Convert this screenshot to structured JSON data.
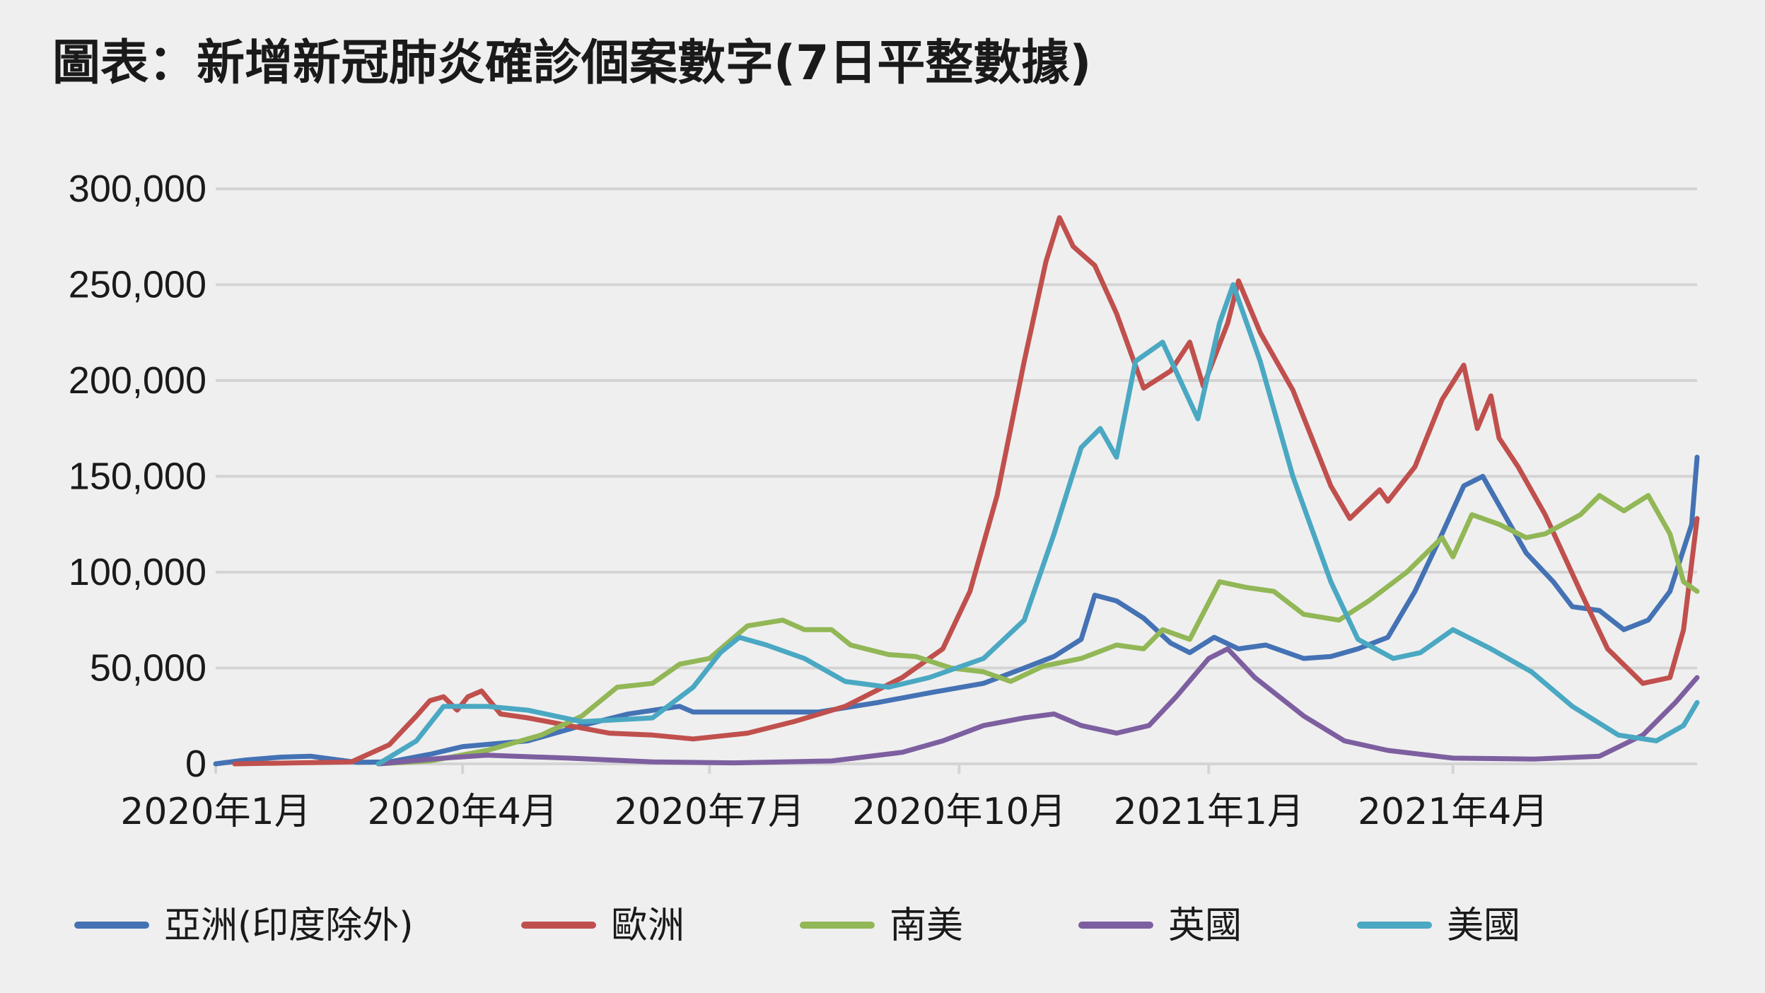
{
  "title": "圖表：新增新冠肺炎確診個案數字(7日平整數據)",
  "colors": {
    "background": "#efefef",
    "grid": "#d4d4d4",
    "text": "#1a1a1a",
    "asia": "#4472b4",
    "europe": "#c0504d",
    "south_america": "#92b756",
    "uk": "#7d5fa0",
    "usa": "#4aa8c2"
  },
  "chart_data": {
    "type": "line",
    "title": "圖表：新增新冠肺炎確診個案數字(7日平整數據)",
    "xlabel": "",
    "ylabel": "",
    "ylim": [
      0,
      300000
    ],
    "xlim": [
      "2020-01-01",
      "2021-06-30"
    ],
    "grid": true,
    "legend_position": "bottom",
    "y_ticks": [
      {
        "value": 0,
        "label": "0"
      },
      {
        "value": 50000,
        "label": "50,000"
      },
      {
        "value": 100000,
        "label": "100,000"
      },
      {
        "value": 150000,
        "label": "150,000"
      },
      {
        "value": 200000,
        "label": "200,000"
      },
      {
        "value": 250000,
        "label": "250,000"
      },
      {
        "value": 300000,
        "label": "300,000"
      }
    ],
    "x_ticks": [
      {
        "date": "2020-01-01",
        "label": "2020年1月"
      },
      {
        "date": "2020-04-01",
        "label": "2020年4月"
      },
      {
        "date": "2020-07-01",
        "label": "2020年7月"
      },
      {
        "date": "2020-10-01",
        "label": "2020年10月"
      },
      {
        "date": "2021-01-01",
        "label": "2021年1月"
      },
      {
        "date": "2021-04-01",
        "label": "2021年4月"
      }
    ],
    "series": [
      {
        "name": "亞洲(印度除外)",
        "color_key": "asia",
        "points": [
          [
            "2020-01-01",
            0
          ],
          [
            "2020-01-12",
            2000
          ],
          [
            "2020-01-25",
            3500
          ],
          [
            "2020-02-05",
            4000
          ],
          [
            "2020-02-10",
            3000
          ],
          [
            "2020-02-22",
            800
          ],
          [
            "2020-03-05",
            1000
          ],
          [
            "2020-03-20",
            5000
          ],
          [
            "2020-04-01",
            9000
          ],
          [
            "2020-04-25",
            12000
          ],
          [
            "2020-05-15",
            20000
          ],
          [
            "2020-06-01",
            26000
          ],
          [
            "2020-06-20",
            30000
          ],
          [
            "2020-06-25",
            27000
          ],
          [
            "2020-07-15",
            27000
          ],
          [
            "2020-08-10",
            27000
          ],
          [
            "2020-09-01",
            32000
          ],
          [
            "2020-09-20",
            37000
          ],
          [
            "2020-10-10",
            42000
          ],
          [
            "2020-10-25",
            50000
          ],
          [
            "2020-11-05",
            56000
          ],
          [
            "2020-11-15",
            65000
          ],
          [
            "2020-11-20",
            88000
          ],
          [
            "2020-11-28",
            85000
          ],
          [
            "2020-12-08",
            76000
          ],
          [
            "2020-12-18",
            63000
          ],
          [
            "2020-12-25",
            58000
          ],
          [
            "2021-01-03",
            66000
          ],
          [
            "2021-01-12",
            60000
          ],
          [
            "2021-01-22",
            62000
          ],
          [
            "2021-02-05",
            55000
          ],
          [
            "2021-02-15",
            56000
          ],
          [
            "2021-02-25",
            60000
          ],
          [
            "2021-03-08",
            66000
          ],
          [
            "2021-03-18",
            90000
          ],
          [
            "2021-03-28",
            120000
          ],
          [
            "2021-04-05",
            145000
          ],
          [
            "2021-04-12",
            150000
          ],
          [
            "2021-04-20",
            130000
          ],
          [
            "2021-04-28",
            110000
          ],
          [
            "2021-05-08",
            95000
          ],
          [
            "2021-05-15",
            82000
          ],
          [
            "2021-05-25",
            80000
          ],
          [
            "2021-06-03",
            70000
          ],
          [
            "2021-06-12",
            75000
          ],
          [
            "2021-06-20",
            90000
          ],
          [
            "2021-06-28",
            125000
          ],
          [
            "2021-06-30",
            160000
          ]
        ]
      },
      {
        "name": "歐洲",
        "color_key": "europe",
        "points": [
          [
            "2020-01-08",
            0
          ],
          [
            "2020-02-20",
            1000
          ],
          [
            "2020-03-05",
            10000
          ],
          [
            "2020-03-15",
            25000
          ],
          [
            "2020-03-20",
            33000
          ],
          [
            "2020-03-25",
            35000
          ],
          [
            "2020-03-30",
            28000
          ],
          [
            "2020-04-03",
            35000
          ],
          [
            "2020-04-08",
            38000
          ],
          [
            "2020-04-15",
            26000
          ],
          [
            "2020-04-25",
            24000
          ],
          [
            "2020-05-10",
            20000
          ],
          [
            "2020-05-25",
            16000
          ],
          [
            "2020-06-10",
            15000
          ],
          [
            "2020-06-25",
            13000
          ],
          [
            "2020-07-15",
            16000
          ],
          [
            "2020-08-01",
            22000
          ],
          [
            "2020-08-20",
            30000
          ],
          [
            "2020-09-10",
            45000
          ],
          [
            "2020-09-25",
            60000
          ],
          [
            "2020-10-05",
            90000
          ],
          [
            "2020-10-15",
            140000
          ],
          [
            "2020-10-25",
            210000
          ],
          [
            "2020-11-02",
            262000
          ],
          [
            "2020-11-07",
            285000
          ],
          [
            "2020-11-12",
            270000
          ],
          [
            "2020-11-20",
            260000
          ],
          [
            "2020-11-28",
            235000
          ],
          [
            "2020-12-08",
            196000
          ],
          [
            "2020-12-18",
            205000
          ],
          [
            "2020-12-25",
            220000
          ],
          [
            "2020-12-30",
            197000
          ],
          [
            "2021-01-08",
            230000
          ],
          [
            "2021-01-12",
            252000
          ],
          [
            "2021-01-20",
            225000
          ],
          [
            "2021-02-01",
            195000
          ],
          [
            "2021-02-15",
            145000
          ],
          [
            "2021-02-22",
            128000
          ],
          [
            "2021-03-05",
            143000
          ],
          [
            "2021-03-08",
            137000
          ],
          [
            "2021-03-18",
            155000
          ],
          [
            "2021-03-28",
            190000
          ],
          [
            "2021-04-05",
            208000
          ],
          [
            "2021-04-10",
            175000
          ],
          [
            "2021-04-15",
            192000
          ],
          [
            "2021-04-18",
            170000
          ],
          [
            "2021-04-25",
            155000
          ],
          [
            "2021-05-05",
            130000
          ],
          [
            "2021-05-18",
            90000
          ],
          [
            "2021-05-28",
            60000
          ],
          [
            "2021-06-10",
            42000
          ],
          [
            "2021-06-20",
            45000
          ],
          [
            "2021-06-25",
            70000
          ],
          [
            "2021-06-30",
            128000
          ]
        ]
      },
      {
        "name": "南美",
        "color_key": "south_america",
        "points": [
          [
            "2020-03-01",
            0
          ],
          [
            "2020-03-20",
            1500
          ],
          [
            "2020-04-10",
            7000
          ],
          [
            "2020-04-30",
            15000
          ],
          [
            "2020-05-15",
            25000
          ],
          [
            "2020-05-28",
            40000
          ],
          [
            "2020-06-10",
            42000
          ],
          [
            "2020-06-20",
            52000
          ],
          [
            "2020-07-01",
            55000
          ],
          [
            "2020-07-15",
            72000
          ],
          [
            "2020-07-28",
            75000
          ],
          [
            "2020-08-05",
            70000
          ],
          [
            "2020-08-15",
            70000
          ],
          [
            "2020-08-22",
            62000
          ],
          [
            "2020-09-05",
            57000
          ],
          [
            "2020-09-15",
            56000
          ],
          [
            "2020-09-28",
            50000
          ],
          [
            "2020-10-10",
            48000
          ],
          [
            "2020-10-20",
            43000
          ],
          [
            "2020-11-01",
            51000
          ],
          [
            "2020-11-15",
            55000
          ],
          [
            "2020-11-28",
            62000
          ],
          [
            "2020-12-08",
            60000
          ],
          [
            "2020-12-15",
            70000
          ],
          [
            "2020-12-25",
            65000
          ],
          [
            "2021-01-05",
            95000
          ],
          [
            "2021-01-15",
            92000
          ],
          [
            "2021-01-25",
            90000
          ],
          [
            "2021-02-05",
            78000
          ],
          [
            "2021-02-18",
            75000
          ],
          [
            "2021-03-01",
            85000
          ],
          [
            "2021-03-15",
            100000
          ],
          [
            "2021-03-28",
            118000
          ],
          [
            "2021-04-01",
            108000
          ],
          [
            "2021-04-08",
            130000
          ],
          [
            "2021-04-18",
            125000
          ],
          [
            "2021-04-28",
            118000
          ],
          [
            "2021-05-05",
            120000
          ],
          [
            "2021-05-18",
            130000
          ],
          [
            "2021-05-25",
            140000
          ],
          [
            "2021-06-03",
            132000
          ],
          [
            "2021-06-12",
            140000
          ],
          [
            "2021-06-20",
            120000
          ],
          [
            "2021-06-25",
            95000
          ],
          [
            "2021-06-30",
            90000
          ]
        ]
      },
      {
        "name": "英國",
        "color_key": "uk",
        "points": [
          [
            "2020-03-01",
            0
          ],
          [
            "2020-03-25",
            3000
          ],
          [
            "2020-04-10",
            4500
          ],
          [
            "2020-05-10",
            3000
          ],
          [
            "2020-06-10",
            1000
          ],
          [
            "2020-07-10",
            500
          ],
          [
            "2020-08-15",
            1500
          ],
          [
            "2020-09-10",
            6000
          ],
          [
            "2020-09-25",
            12000
          ],
          [
            "2020-10-10",
            20000
          ],
          [
            "2020-10-25",
            24000
          ],
          [
            "2020-11-05",
            26000
          ],
          [
            "2020-11-15",
            20000
          ],
          [
            "2020-11-28",
            16000
          ],
          [
            "2020-12-10",
            20000
          ],
          [
            "2020-12-20",
            35000
          ],
          [
            "2021-01-01",
            55000
          ],
          [
            "2021-01-08",
            60000
          ],
          [
            "2021-01-18",
            45000
          ],
          [
            "2021-02-05",
            25000
          ],
          [
            "2021-02-20",
            12000
          ],
          [
            "2021-03-08",
            7000
          ],
          [
            "2021-04-01",
            3000
          ],
          [
            "2021-05-01",
            2500
          ],
          [
            "2021-05-25",
            4000
          ],
          [
            "2021-06-10",
            15000
          ],
          [
            "2021-06-22",
            32000
          ],
          [
            "2021-06-30",
            45000
          ]
        ]
      },
      {
        "name": "美國",
        "color_key": "usa",
        "points": [
          [
            "2020-03-01",
            0
          ],
          [
            "2020-03-15",
            12000
          ],
          [
            "2020-03-25",
            30000
          ],
          [
            "2020-04-10",
            30000
          ],
          [
            "2020-04-25",
            28000
          ],
          [
            "2020-05-15",
            22000
          ],
          [
            "2020-06-10",
            24000
          ],
          [
            "2020-06-25",
            40000
          ],
          [
            "2020-07-05",
            58000
          ],
          [
            "2020-07-12",
            66000
          ],
          [
            "2020-07-22",
            62000
          ],
          [
            "2020-08-05",
            55000
          ],
          [
            "2020-08-20",
            43000
          ],
          [
            "2020-09-05",
            40000
          ],
          [
            "2020-09-20",
            45000
          ],
          [
            "2020-10-10",
            55000
          ],
          [
            "2020-10-25",
            75000
          ],
          [
            "2020-11-05",
            120000
          ],
          [
            "2020-11-15",
            165000
          ],
          [
            "2020-11-22",
            175000
          ],
          [
            "2020-11-28",
            160000
          ],
          [
            "2020-12-05",
            210000
          ],
          [
            "2020-12-15",
            220000
          ],
          [
            "2020-12-28",
            180000
          ],
          [
            "2021-01-05",
            230000
          ],
          [
            "2021-01-10",
            250000
          ],
          [
            "2021-01-20",
            210000
          ],
          [
            "2021-02-01",
            150000
          ],
          [
            "2021-02-15",
            95000
          ],
          [
            "2021-02-25",
            65000
          ],
          [
            "2021-03-10",
            55000
          ],
          [
            "2021-03-20",
            58000
          ],
          [
            "2021-04-01",
            70000
          ],
          [
            "2021-04-15",
            60000
          ],
          [
            "2021-04-30",
            48000
          ],
          [
            "2021-05-15",
            30000
          ],
          [
            "2021-06-01",
            15000
          ],
          [
            "2021-06-15",
            12000
          ],
          [
            "2021-06-25",
            20000
          ],
          [
            "2021-06-30",
            32000
          ]
        ]
      }
    ]
  },
  "legend": [
    {
      "label": "亞洲(印度除外)",
      "color_key": "asia"
    },
    {
      "label": "歐洲",
      "color_key": "europe"
    },
    {
      "label": "南美",
      "color_key": "south_america"
    },
    {
      "label": "英國",
      "color_key": "uk"
    },
    {
      "label": "美國",
      "color_key": "usa"
    }
  ]
}
